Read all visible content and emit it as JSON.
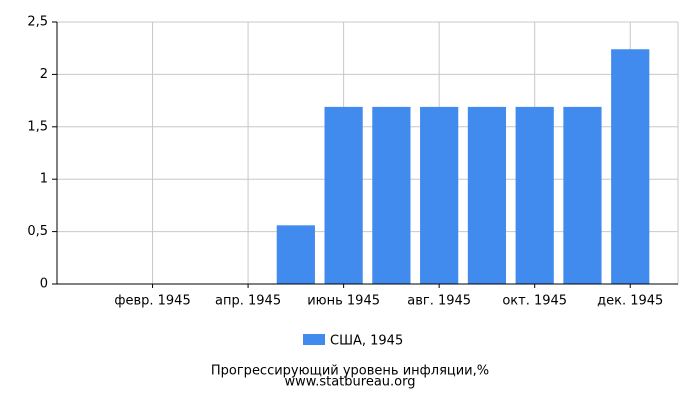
{
  "chart_data": {
    "type": "bar",
    "categories": [
      null,
      "февр. 1945",
      null,
      "апр. 1945",
      null,
      "июнь 1945",
      null,
      "авг. 1945",
      null,
      "окт. 1945",
      null,
      "дек. 1945"
    ],
    "series": [
      {
        "name": "США, 1945",
        "color": "#418bee",
        "values": [
          0,
          0,
          0,
          0,
          0.56,
          1.69,
          1.69,
          1.69,
          1.69,
          1.69,
          1.69,
          2.24
        ]
      }
    ],
    "ylim": [
      0,
      2.5
    ],
    "yticks": [
      0,
      {
        "value": 0.5,
        "label": "0,5"
      },
      1,
      {
        "value": 1.5,
        "label": "1,5"
      },
      2,
      {
        "value": 2.5,
        "label": "2,5"
      }
    ],
    "grid": true,
    "legend": "bottom",
    "caption": [
      "Прогрессирующий уровень инфляции,%",
      "www.statbureau.org"
    ]
  }
}
